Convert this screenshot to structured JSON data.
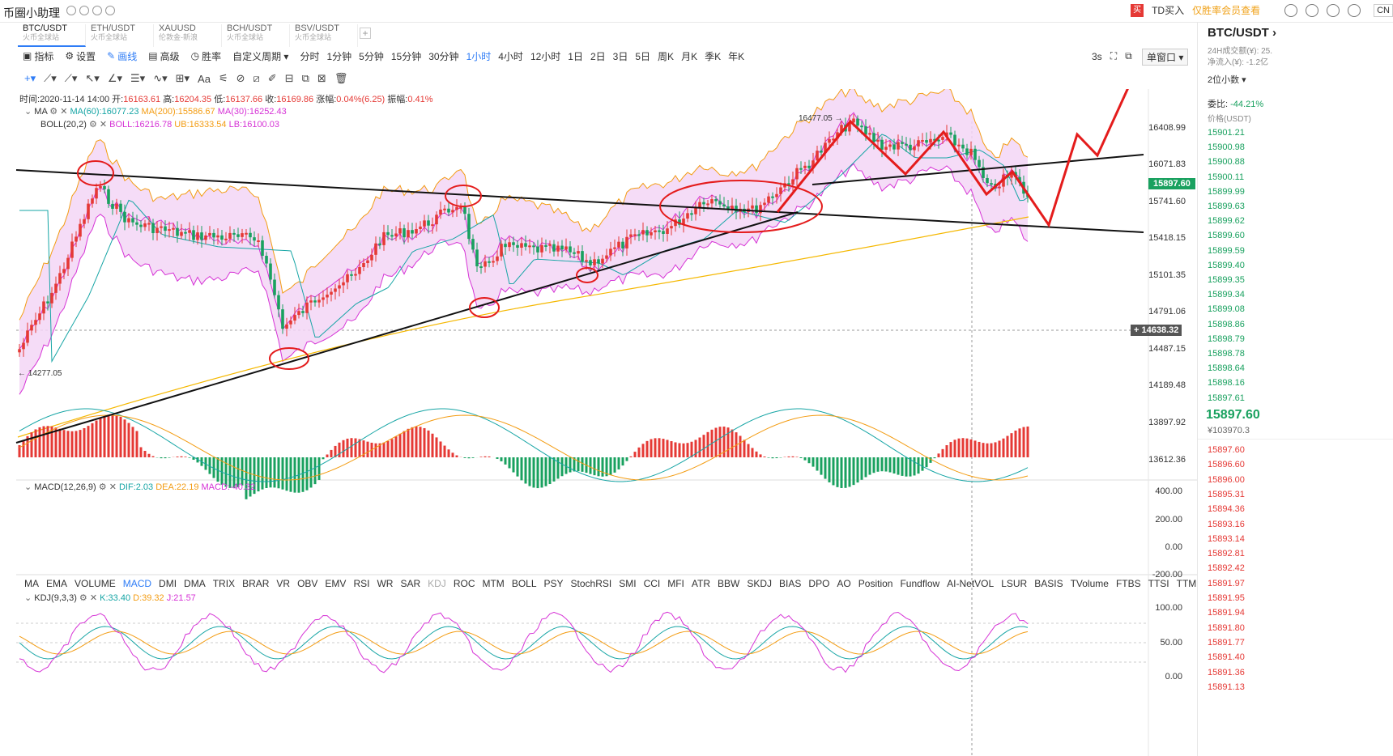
{
  "app": {
    "title": "币圈小助理",
    "td_buy": "TD买入",
    "vip_note": "仅胜率会员查看",
    "lang": "CN"
  },
  "tabs": [
    {
      "pair": "BTC/USDT",
      "sub": "火币全球站"
    },
    {
      "pair": "ETH/USDT",
      "sub": "火币全球站"
    },
    {
      "pair": "XAUUSD",
      "sub": "伦敦金-新浪"
    },
    {
      "pair": "BCH/USDT",
      "sub": "火币全球站"
    },
    {
      "pair": "BSV/USDT",
      "sub": "火币全球站"
    }
  ],
  "toolbar": {
    "indicator": "指标",
    "settings": "设置",
    "draw": "画线",
    "advanced": "高级",
    "winrate": "胜率",
    "custom_period": "自定义周期",
    "periods": [
      "分时",
      "1分钟",
      "5分钟",
      "15分钟",
      "30分钟",
      "1小时",
      "4小时",
      "12小时",
      "1日",
      "2日",
      "3日",
      "5日",
      "周K",
      "月K",
      "季K",
      "年K"
    ],
    "active_period": "1小时",
    "refresh": "3s",
    "window_mode": "单窗口"
  },
  "candle_info": {
    "time_label": "时间:",
    "time": "2020-11-14 14:00",
    "open_label": "开:",
    "open": "16163.61",
    "high_label": "高:",
    "high": "16204.35",
    "low_label": "低:",
    "low": "16137.66",
    "close_label": "收:",
    "close": "16169.86",
    "chg_label": "涨幅:",
    "chg": "0.04%(6.25)",
    "amp_label": "振幅:",
    "amp": "0.41%"
  },
  "ma_line": {
    "name": "MA",
    "ma60": "MA(60):16077.23",
    "ma200": "MA(200):15586.67",
    "ma30": "MA(30):16252.43"
  },
  "boll_line": {
    "name": "BOLL(20,2)",
    "boll": "BOLL:16216.78",
    "ub": "UB:16333.54",
    "lb": "LB:16100.03"
  },
  "main_axis": {
    "ticks": [
      "16408.99",
      "16071.83",
      "15741.60",
      "15418.15",
      "15101.35",
      "14791.06",
      "14487.15",
      "14189.48",
      "13897.92",
      "13612.36"
    ],
    "current_price": "15897.60",
    "crosshair_price": "14638.32",
    "high_marker": "16477.05",
    "low_marker": "14277.05"
  },
  "macd": {
    "name": "MACD(12,26,9)",
    "dif": "DIF:2.03",
    "dea": "DEA:22.19",
    "macd": "MACD:-40.32",
    "ticks": [
      "400.00",
      "200.00",
      "0.00",
      "-200.00"
    ]
  },
  "indicators": {
    "items": [
      "MA",
      "EMA",
      "VOLUME",
      "MACD",
      "DMI",
      "DMA",
      "TRIX",
      "BRAR",
      "VR",
      "OBV",
      "EMV",
      "RSI",
      "WR",
      "SAR",
      "KDJ",
      "ROC",
      "MTM",
      "BOLL",
      "PSY",
      "StochRSI",
      "SMI",
      "CCI",
      "MFI",
      "ATR",
      "BBW",
      "SKDJ",
      "BIAS",
      "DPO",
      "AO",
      "Position",
      "Fundflow",
      "AI-NetVOL",
      "LSUR",
      "BASIS",
      "TVolume",
      "FTBS",
      "TTSI",
      "TTMU",
      "AI-BSI"
    ],
    "active": "MACD",
    "dim": "KDJ"
  },
  "kdj": {
    "name": "KDJ(9,3,3)",
    "k": "K:33.40",
    "d": "D:39.32",
    "j": "J:21.57",
    "ticks": [
      "100.00",
      "50.00",
      "0.00"
    ]
  },
  "side": {
    "pair": "BTC/USDT",
    "vol_label": "24H成交额(¥): 25.",
    "flow_label": "净流入(¥): -1.2亿",
    "decimals": "2位小数",
    "ratio_label": "委比:",
    "ratio": "-44.21%",
    "price_header": "价格(USDT)",
    "asks": [
      "15901.21",
      "15900.98",
      "15900.88",
      "15900.11",
      "15899.99",
      "15899.63",
      "15899.62",
      "15899.60",
      "15899.59",
      "15899.40",
      "15899.35",
      "15899.34",
      "15899.08",
      "15898.86",
      "15898.79",
      "15898.78",
      "15898.64",
      "15898.16",
      "15897.61"
    ],
    "last": "15897.60",
    "last_cny": "¥103970.3",
    "bids": [
      "15897.60",
      "15896.60",
      "15896.00",
      "15895.31",
      "15894.36",
      "15893.16",
      "15893.14",
      "15892.81",
      "15892.42",
      "15891.97",
      "15891.95",
      "15891.94",
      "15891.80",
      "15891.77",
      "15891.40",
      "15891.36",
      "15891.13"
    ]
  },
  "colors": {
    "up": "#e53935",
    "down": "#19a15f",
    "accent": "#2e7cf6",
    "boll_fill": "#f3d6f6",
    "ma200": "#f5b800"
  }
}
